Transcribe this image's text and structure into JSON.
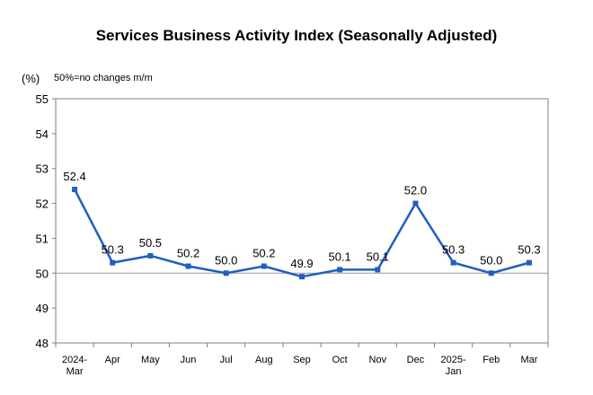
{
  "chart_data": {
    "type": "line",
    "title": "Services Business Activity Index (Seasonally Adjusted)",
    "unit_label": "(%)",
    "note": "50%=no changes m/m",
    "categories": [
      [
        "2024-",
        "Mar"
      ],
      [
        "Apr"
      ],
      [
        "May"
      ],
      [
        "Jun"
      ],
      [
        "Jul"
      ],
      [
        "Aug"
      ],
      [
        "Sep"
      ],
      [
        "Oct"
      ],
      [
        "Nov"
      ],
      [
        "Dec"
      ],
      [
        "2025-",
        "Jan"
      ],
      [
        "Feb"
      ],
      [
        "Mar"
      ]
    ],
    "series": [
      {
        "values": [
          52.4,
          50.3,
          50.5,
          50.2,
          50.0,
          50.2,
          49.9,
          50.1,
          50.1,
          52.0,
          50.3,
          50.0,
          50.3
        ],
        "labels": [
          "52.4",
          "50.3",
          "50.5",
          "50.2",
          "50.0",
          "50.2",
          "49.9",
          "50.1",
          "50.1",
          "52.0",
          "50.3",
          "50.0",
          "50.3"
        ]
      }
    ],
    "ylim": [
      48,
      55
    ],
    "yticks": [
      48,
      49,
      50,
      51,
      52,
      53,
      54,
      55
    ],
    "reference_line": 50,
    "grid": false,
    "legend": "none",
    "line_color": "#1f5fbf",
    "reference_color": "#9a9a9a"
  }
}
